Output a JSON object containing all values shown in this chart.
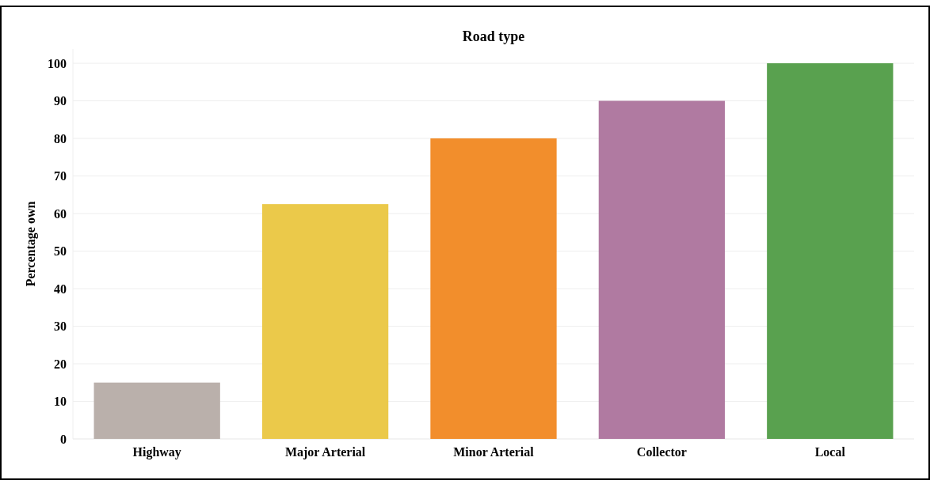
{
  "chart_data": {
    "type": "bar",
    "title": "Road type",
    "ylabel": "Percentage own",
    "categories": [
      "Highway",
      "Major Arterial",
      "Minor Arterial",
      "Collector",
      "Local"
    ],
    "values": [
      15,
      62.5,
      80,
      90,
      100
    ],
    "colors": [
      "#bab0ab",
      "#ebc94a",
      "#f28e2c",
      "#b07aa1",
      "#59a14f"
    ],
    "ylim": [
      0,
      100
    ],
    "yticks": [
      0,
      10,
      20,
      30,
      40,
      50,
      60,
      70,
      80,
      90,
      100
    ],
    "grid": "y"
  }
}
